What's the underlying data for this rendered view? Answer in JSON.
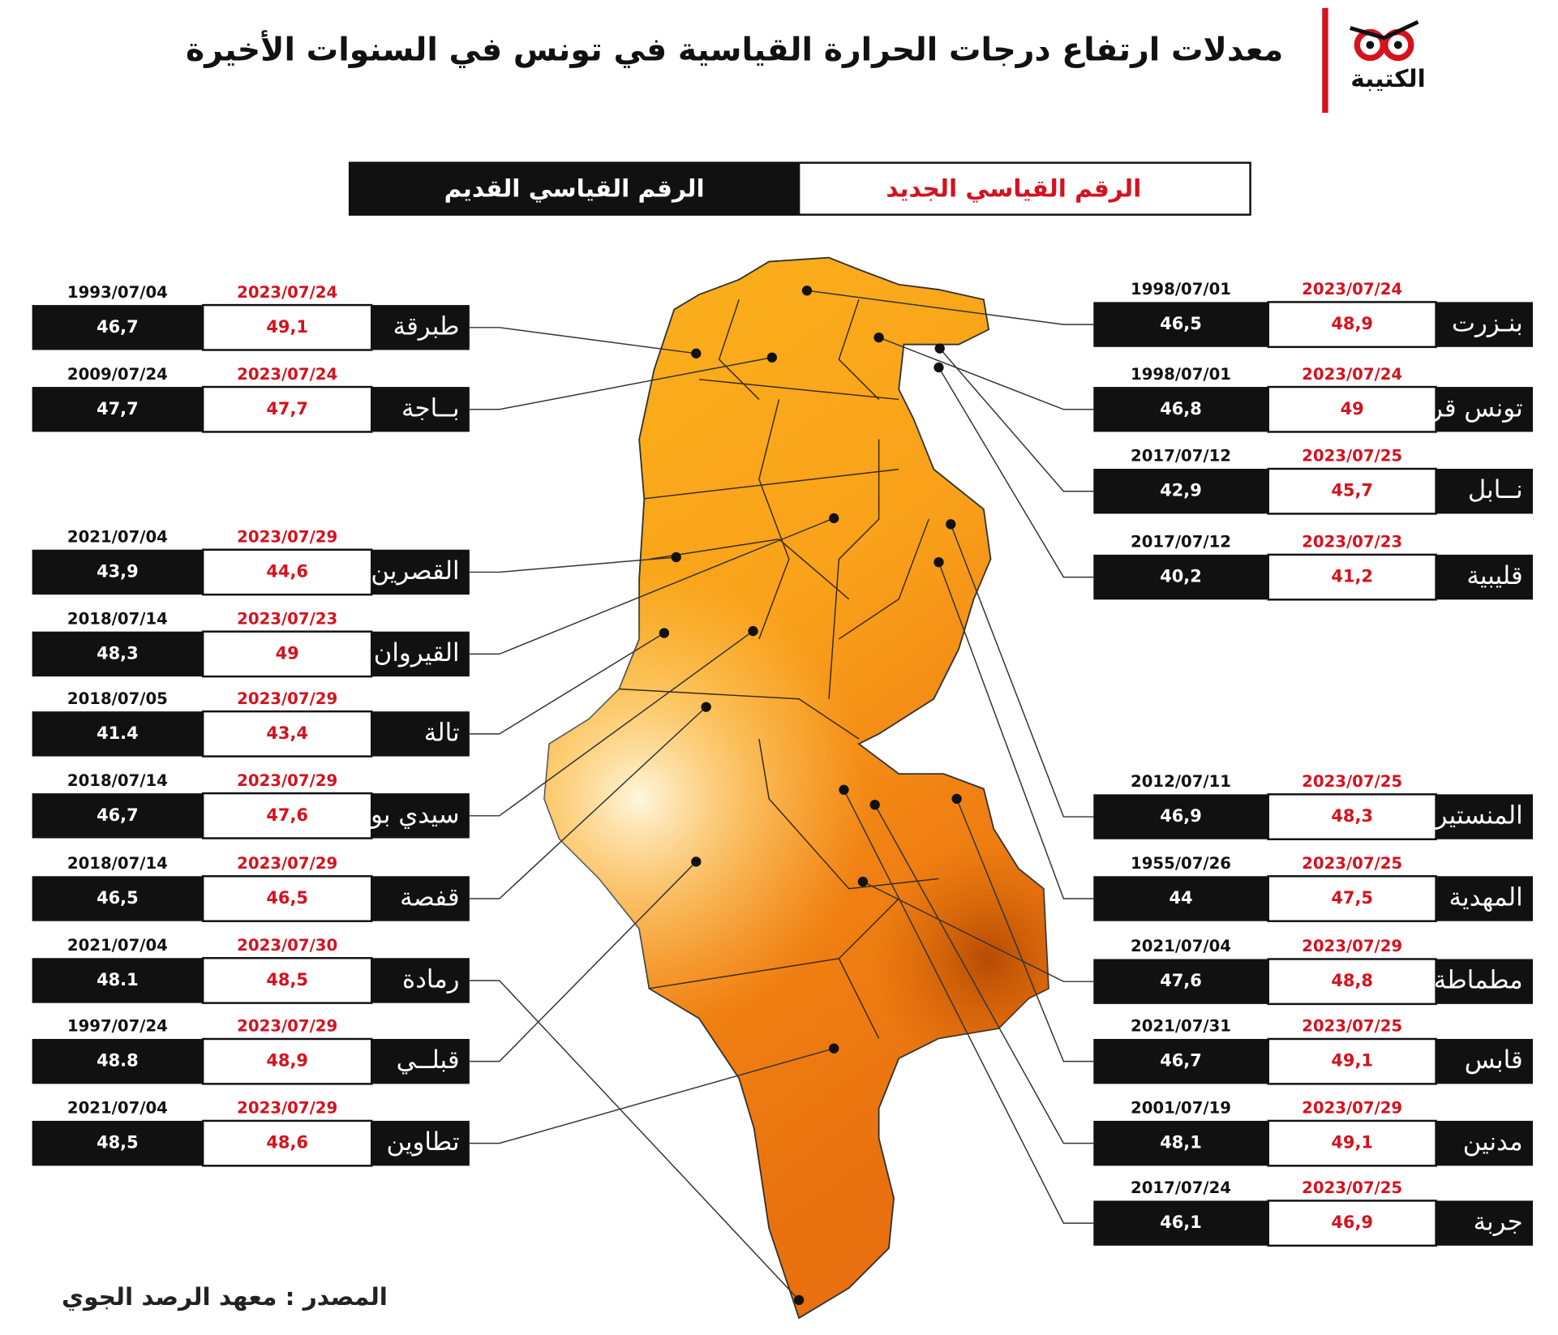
{
  "header": {
    "title": "معدلات ارتفاع درجات الحرارة القياسية في تونس في السنوات الأخيرة",
    "brand": "الكتيبة"
  },
  "legend": {
    "old_label": "الرقم القياسي القديم",
    "new_label": "الرقم القياسي الجديد"
  },
  "left_stations": [
    {
      "name": "طبرقة",
      "new_date": "2023/07/24",
      "new_value": "49,1",
      "old_date": "1993/07/04",
      "old_value": "46,7"
    },
    {
      "name": "بــاجة",
      "new_date": "2023/07/24",
      "new_value": "47,7",
      "old_date": "2009/07/24",
      "old_value": "47,7"
    },
    {
      "name": "القصرين",
      "new_date": "2023/07/29",
      "new_value": "44,6",
      "old_date": "2021/07/04",
      "old_value": "43,9"
    },
    {
      "name": "القيروان",
      "new_date": "2023/07/23",
      "new_value": "49",
      "old_date": "2018/07/14",
      "old_value": "48,3"
    },
    {
      "name": "تالة",
      "new_date": "2023/07/29",
      "new_value": "43,4",
      "old_date": "2018/07/05",
      "old_value": "41.4"
    },
    {
      "name": "سيدي بوزيد",
      "new_date": "2023/07/29",
      "new_value": "47,6",
      "old_date": "2018/07/14",
      "old_value": "46,7"
    },
    {
      "name": "قفصة",
      "new_date": "2023/07/29",
      "new_value": "46,5",
      "old_date": "2018/07/14",
      "old_value": "46,5"
    },
    {
      "name": "رمادة",
      "new_date": "2023/07/30",
      "new_value": "48,5",
      "old_date": "2021/07/04",
      "old_value": "48.1"
    },
    {
      "name": "قبلــي",
      "new_date": "2023/07/29",
      "new_value": "48,9",
      "old_date": "1997/07/24",
      "old_value": "48.8"
    },
    {
      "name": "تطاوين",
      "new_date": "2023/07/29",
      "new_value": "48,6",
      "old_date": "2021/07/04",
      "old_value": "48,5"
    }
  ],
  "right_stations": [
    {
      "name": "بنـزرت",
      "new_date": "2023/07/24",
      "new_value": "48,9",
      "old_date": "1998/07/01",
      "old_value": "46,5"
    },
    {
      "name": "تونس قرطاج",
      "new_date": "2023/07/24",
      "new_value": "49",
      "old_date": "1998/07/01",
      "old_value": "46,8"
    },
    {
      "name": "نــابل",
      "new_date": "2023/07/25",
      "new_value": "45,7",
      "old_date": "2017/07/12",
      "old_value": "42,9"
    },
    {
      "name": "قليبية",
      "new_date": "2023/07/23",
      "new_value": "41,2",
      "old_date": "2017/07/12",
      "old_value": "40,2"
    },
    {
      "name": "المنستير",
      "new_date": "2023/07/25",
      "new_value": "48,3",
      "old_date": "2012/07/11",
      "old_value": "46,9"
    },
    {
      "name": "المهدية",
      "new_date": "2023/07/25",
      "new_value": "47,5",
      "old_date": "1955/07/26",
      "old_value": "44"
    },
    {
      "name": "مطماطة",
      "new_date": "2023/07/29",
      "new_value": "48,8",
      "old_date": "2021/07/04",
      "old_value": "47,6"
    },
    {
      "name": "قابس",
      "new_date": "2023/07/25",
      "new_value": "49,1",
      "old_date": "2021/07/31",
      "old_value": "46,7"
    },
    {
      "name": "مدنين",
      "new_date": "2023/07/29",
      "new_value": "49,1",
      "old_date": "2001/07/19",
      "old_value": "48,1"
    },
    {
      "name": "جربة",
      "new_date": "2023/07/25",
      "new_value": "46,9",
      "old_date": "2017/07/24",
      "old_value": "46,1"
    }
  ],
  "footer": {
    "source": "المصدر : معهد الرصد الجوي"
  }
}
